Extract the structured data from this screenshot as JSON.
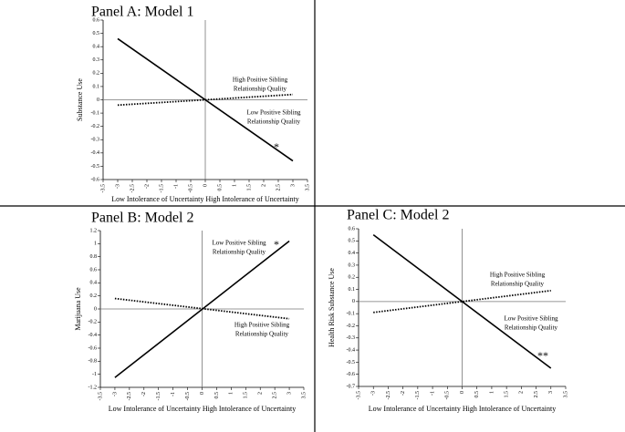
{
  "chart_data": [
    {
      "type": "line",
      "title": "Panel A: Model 1",
      "y_label": "Substance Use",
      "x_label": "Low Intolerance of Uncertainty  High Intolerance of Uncertainty",
      "x": [
        -3,
        3
      ],
      "series": [
        {
          "style": "solid",
          "color": "#000000",
          "values": [
            0.46,
            -0.46
          ]
        },
        {
          "style": "dotted",
          "color": "#000000",
          "values": [
            -0.04,
            0.04
          ]
        }
      ],
      "xlim": [
        -3.5,
        3.5
      ],
      "ylim": [
        -0.6,
        0.6
      ],
      "xticks": [
        -3.5,
        -3,
        -2.5,
        -2,
        -1.5,
        -1,
        -0.5,
        0,
        0.5,
        1,
        1.5,
        2,
        2.5,
        3,
        3.5
      ],
      "yticks": [
        0.6,
        0.5,
        0.4,
        0.3,
        0.2,
        0.1,
        0,
        -0.1,
        -0.2,
        -0.3,
        -0.4,
        -0.5,
        -0.6
      ],
      "annotations": [
        [
          "High Positive Sibling",
          "Relationship Quality"
        ],
        [
          "Low Positive Sibling",
          "Relationship Quality"
        ],
        [
          "*"
        ]
      ]
    },
    {
      "type": "line",
      "title": "Panel B: Model 2",
      "y_label": "Marijuana Use",
      "x_label": "Low Intolerance of Uncertainty  High Intolerance of Uncertainty",
      "x": [
        -3,
        3
      ],
      "series": [
        {
          "style": "solid",
          "color": "#000000",
          "values": [
            -1.05,
            1.04
          ]
        },
        {
          "style": "dotted",
          "color": "#000000",
          "values": [
            0.16,
            -0.15
          ]
        }
      ],
      "xlim": [
        -3.5,
        3.5
      ],
      "ylim": [
        -1.2,
        1.2
      ],
      "xticks": [
        -3.5,
        -3,
        -2.5,
        -2,
        -1.5,
        -1,
        -0.5,
        0,
        0.5,
        1,
        1.5,
        2,
        2.5,
        3,
        3.5
      ],
      "yticks": [
        1.2,
        1,
        0.8,
        0.6,
        0.4,
        0.2,
        0,
        -0.2,
        -0.4,
        -0.6,
        -0.8,
        -1,
        -1.2
      ],
      "annotations": [
        [
          "Low Positive Sibling",
          "Relationship Quality"
        ],
        [
          "*"
        ],
        [
          "High Positive Sibling",
          "Relationship Quality"
        ]
      ]
    },
    {
      "type": "line",
      "title": "Panel C: Model 2",
      "y_label": "Health Risk Substance Use",
      "x_label": "Low Intolerance of Uncertainty  High Intolerance of Uncertainty",
      "x": [
        -3,
        3
      ],
      "series": [
        {
          "style": "solid",
          "color": "#000000",
          "values": [
            0.55,
            -0.55
          ]
        },
        {
          "style": "dotted",
          "color": "#000000",
          "values": [
            -0.09,
            0.09
          ]
        }
      ],
      "xlim": [
        -3.5,
        3.5
      ],
      "ylim": [
        -0.7,
        0.6
      ],
      "xticks": [
        -3.5,
        -3,
        -2.5,
        -2,
        -1.5,
        -1,
        -0.5,
        0,
        0.5,
        1,
        1.5,
        2,
        2.5,
        3,
        3.5
      ],
      "yticks": [
        0.6,
        0.5,
        0.4,
        0.3,
        0.2,
        0.1,
        0,
        -0.1,
        -0.2,
        -0.3,
        -0.4,
        -0.5,
        -0.6,
        -0.7
      ],
      "annotations": [
        [
          "High Positive Sibling",
          "Relationship Quality"
        ],
        [
          "Low Positive Sibling",
          "Relationship Quality"
        ],
        [
          "**"
        ]
      ]
    }
  ]
}
